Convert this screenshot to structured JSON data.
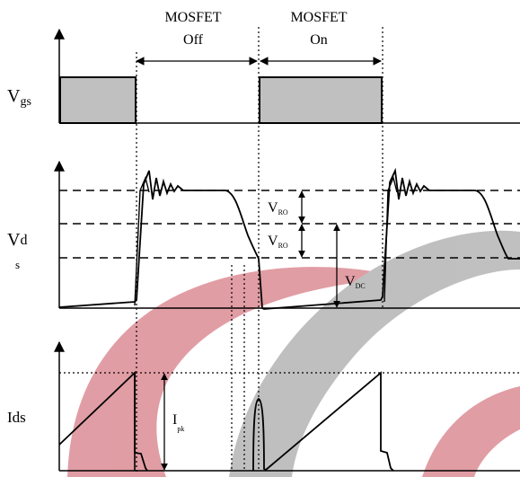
{
  "header": {
    "off_line1": "MOSFET",
    "off_line2": "Off",
    "on_line1": "MOSFET",
    "on_line2": "On"
  },
  "vgs": {
    "label_main": "V",
    "label_sub": "gs",
    "fill_color": "#c0c0c0"
  },
  "vds": {
    "label_main": "V",
    "label_sub": "d",
    "label_wrap": "s",
    "vro_top_main": "V",
    "vro_top_sub": "RO",
    "vro_bottom_main": "V",
    "vro_bottom_sub": "RO",
    "vdc_main": "V",
    "vdc_sub": "DC"
  },
  "ids": {
    "label": "Ids",
    "ipk_main": "I",
    "ipk_sub": "pk"
  },
  "watermark": {
    "red_color": "#dc8c95",
    "gray_color": "#b5b5b5"
  }
}
